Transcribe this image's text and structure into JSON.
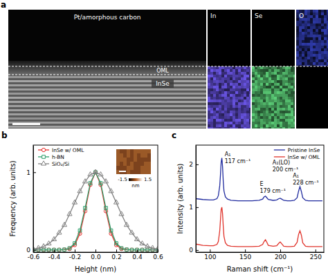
{
  "micrograph": {
    "panel": "a",
    "labels": [
      "Pt/amorphous carbon",
      "OML",
      "InSe"
    ],
    "maps": [
      {
        "label": "In",
        "color": "#6a55e6"
      },
      {
        "label": "Se",
        "color": "#5ccf78"
      },
      {
        "label": "O",
        "color": "#3f4fe6"
      }
    ]
  },
  "chart_data": [
    {
      "type": "line",
      "panel": "b",
      "xlabel": "Height (nm)",
      "ylabel": "Frequency (arb. units)",
      "x": [
        -0.6,
        -0.55,
        -0.5,
        -0.45,
        -0.4,
        -0.35,
        -0.3,
        -0.25,
        -0.2,
        -0.15,
        -0.1,
        -0.05,
        0,
        0.05,
        0.1,
        0.15,
        0.2,
        0.25,
        0.3,
        0.35,
        0.4,
        0.45,
        0.5,
        0.55,
        0.6
      ],
      "series": [
        {
          "name": "InSe w/ OML",
          "color": "#e8312f",
          "marker": "circle",
          "line_style": "solid",
          "values": [
            0,
            0,
            0,
            0,
            0,
            0,
            0.002,
            0.013,
            0.063,
            0.21,
            0.5,
            0.84,
            1,
            0.84,
            0.5,
            0.21,
            0.063,
            0.013,
            0.002,
            0,
            0,
            0,
            0,
            0,
            0
          ]
        },
        {
          "name": "h-BN",
          "color": "#2e9e6b",
          "marker": "square",
          "line_style": "solid",
          "values": [
            0,
            0,
            0,
            0,
            0,
            0,
            0.004,
            0.021,
            0.085,
            0.25,
            0.54,
            0.86,
            1,
            0.86,
            0.54,
            0.25,
            0.085,
            0.021,
            0.004,
            0,
            0,
            0,
            0,
            0,
            0
          ]
        },
        {
          "name": "SiO₂/Si",
          "color": "#808080",
          "marker": "triangle",
          "line_style": "solid",
          "values": [
            0.011,
            0.023,
            0.044,
            0.08,
            0.135,
            0.22,
            0.32,
            0.46,
            0.61,
            0.755,
            0.88,
            0.97,
            1,
            0.97,
            0.88,
            0.755,
            0.61,
            0.46,
            0.32,
            0.22,
            0.135,
            0.08,
            0.044,
            0.023,
            0.011
          ]
        }
      ],
      "xlim": [
        -0.6,
        0.6
      ],
      "ylim": [
        -0.03,
        1.35
      ],
      "xticks": [
        -0.6,
        -0.4,
        -0.2,
        {
          "value": 0,
          "label": "0.0"
        },
        0.2,
        0.4,
        0.6
      ],
      "yticks": [
        0,
        1
      ],
      "grid": false,
      "legend": "upper left",
      "inset": {
        "colorbar_ticks": [
          -1.5,
          1.5
        ],
        "colorbar_label": "nm"
      }
    },
    {
      "type": "line",
      "panel": "c",
      "xlabel": "Raman shift (cm⁻¹)",
      "ylabel": "Intensity (arb. units)",
      "x": [
        80,
        90,
        100,
        105,
        110,
        112,
        114,
        115,
        116,
        117,
        118,
        119,
        120,
        122,
        125,
        130,
        140,
        150,
        160,
        170,
        175,
        177,
        179,
        181,
        183,
        190,
        195,
        198,
        200,
        202,
        205,
        210,
        215,
        220,
        224,
        226,
        228,
        230,
        232,
        236,
        240,
        250,
        260
      ],
      "series": [
        {
          "name": "Pristine InSe",
          "color": "#1f2a9e",
          "line_style": "solid",
          "values": [
            1.2,
            1.18,
            1.17,
            1.17,
            1.2,
            1.27,
            1.5,
            1.75,
            2.05,
            2.15,
            1.95,
            1.6,
            1.38,
            1.24,
            1.19,
            1.16,
            1.15,
            1.15,
            1.15,
            1.16,
            1.19,
            1.24,
            1.26,
            1.22,
            1.18,
            1.16,
            1.17,
            1.2,
            1.21,
            1.19,
            1.16,
            1.15,
            1.15,
            1.16,
            1.22,
            1.37,
            1.48,
            1.37,
            1.22,
            1.16,
            1.15,
            1.15,
            1.15
          ]
        },
        {
          "name": "InSe w/ OML",
          "color": "#e0322a",
          "line_style": "solid",
          "values": [
            0.14,
            0.11,
            0.1,
            0.1,
            0.13,
            0.2,
            0.45,
            0.7,
            0.95,
            1.0,
            0.85,
            0.55,
            0.32,
            0.17,
            0.11,
            0.09,
            0.08,
            0.08,
            0.08,
            0.09,
            0.13,
            0.2,
            0.24,
            0.18,
            0.11,
            0.09,
            0.1,
            0.16,
            0.19,
            0.15,
            0.09,
            0.08,
            0.08,
            0.09,
            0.18,
            0.36,
            0.45,
            0.35,
            0.17,
            0.09,
            0.08,
            0.08,
            0.08
          ]
        }
      ],
      "xlim": [
        80,
        262
      ],
      "ylim": [
        -0.05,
        2.45
      ],
      "xticks": [
        100,
        150,
        200,
        250
      ],
      "yticks": [
        0,
        1,
        2
      ],
      "grid": false,
      "legend": "upper right",
      "annotations": [
        {
          "label": "A₁",
          "sublabel": "117 cm⁻¹",
          "x": 121,
          "y": 2.2
        },
        {
          "label": "E",
          "sublabel": "179 cm⁻¹",
          "x": 171,
          "y": 1.5
        },
        {
          "label": "A₁(LO)",
          "sublabel": "200 cm⁻¹",
          "x": 189,
          "y": 2.0
        },
        {
          "label": "A₁",
          "sublabel": "228 cm⁻¹",
          "x": 218,
          "y": 1.7
        }
      ]
    }
  ]
}
